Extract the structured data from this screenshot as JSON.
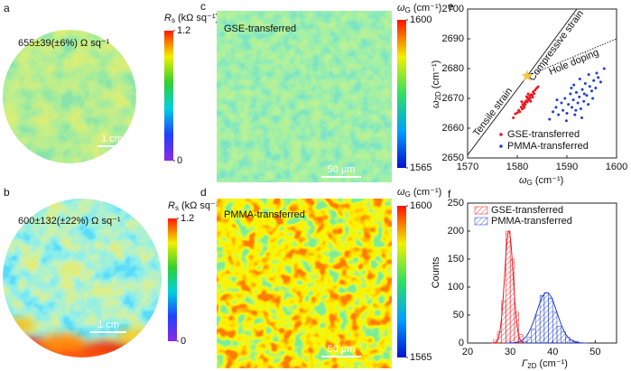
{
  "chart_data": [
    {
      "type": "map",
      "panel": "a",
      "shape": "circle",
      "colormap": "rainbow",
      "colorbar_label": {
        "symbol": "R",
        "subscript": "s",
        "unit": "(kΩ sq⁻¹)"
      },
      "annotation": "655±39(±6%) Ω sq⁻¹",
      "scale_bar": "1 cm",
      "clim": [
        0,
        1.2
      ],
      "cticks": [
        0,
        1.2
      ]
    },
    {
      "type": "map",
      "panel": "b",
      "shape": "circle",
      "colormap": "rainbow",
      "colorbar_label": {
        "symbol": "R",
        "subscript": "s",
        "unit": "(kΩ sq⁻¹)"
      },
      "annotation": "600±132(±22%) Ω sq⁻¹",
      "scale_bar": "1 cm",
      "clim": [
        0,
        1.2
      ],
      "cticks": [
        0,
        1.2
      ]
    },
    {
      "type": "map",
      "panel": "c",
      "shape": "square",
      "colormap": "jet",
      "colorbar_label": {
        "symbol": "ω",
        "subscript": "G",
        "unit": "(cm⁻¹)"
      },
      "annotation": "GSE-transferred",
      "scale_bar": "50 μm",
      "clim": [
        1565,
        1600
      ],
      "cticks": [
        1565,
        1600
      ]
    },
    {
      "type": "map",
      "panel": "d",
      "shape": "square",
      "colormap": "jet",
      "colorbar_label": {
        "symbol": "ω",
        "subscript": "G",
        "unit": "(cm⁻¹)"
      },
      "annotation": "PMMA-transferred",
      "scale_bar": "50 μm",
      "clim": [
        1565,
        1600
      ],
      "cticks": [
        1565,
        1600
      ]
    },
    {
      "type": "scatter",
      "panel": "e",
      "x_label": {
        "symbol": "ω",
        "subscript": "G",
        "unit": "(cm⁻¹)"
      },
      "y_label": {
        "symbol": "ω",
        "subscript": "2D",
        "unit": "(cm⁻¹)"
      },
      "xlim": [
        1570,
        1600
      ],
      "xticks": [
        1570,
        1580,
        1590,
        1600
      ],
      "ylim": [
        2650,
        2700
      ],
      "yticks": [
        2650,
        2660,
        2670,
        2680,
        2690,
        2700
      ],
      "legend": "lower right",
      "series": [
        {
          "name": "GSE-transferred",
          "color": "#e8191f",
          "x": [
            1579.2,
            1579.6,
            1580.0,
            1580.3,
            1580.5,
            1580.8,
            1581.0,
            1581.1,
            1581.3,
            1581.5,
            1581.6,
            1581.8,
            1582.0,
            1582.1,
            1582.3,
            1582.5,
            1582.6,
            1582.8,
            1583.0,
            1583.2,
            1583.4,
            1583.6,
            1583.9,
            1584.2,
            1580.9,
            1581.4,
            1582.2,
            1582.7,
            1583.1,
            1581.9
          ],
          "y": [
            2663.5,
            2664.8,
            2665.2,
            2666.0,
            2665.5,
            2667.1,
            2666.4,
            2668.0,
            2667.5,
            2668.6,
            2667.9,
            2669.2,
            2668.8,
            2670.1,
            2669.4,
            2670.8,
            2670.0,
            2671.3,
            2671.0,
            2672.2,
            2671.6,
            2672.8,
            2673.4,
            2673.9,
            2668.9,
            2666.9,
            2671.5,
            2669.0,
            2670.4,
            2670.6
          ]
        },
        {
          "name": "PMMA-transferred",
          "color": "#1f3fd4",
          "x": [
            1586.5,
            1587.2,
            1587.8,
            1588.3,
            1588.9,
            1589.2,
            1589.6,
            1590.0,
            1590.3,
            1590.7,
            1591.0,
            1591.3,
            1591.6,
            1591.9,
            1592.2,
            1592.5,
            1592.8,
            1593.1,
            1593.4,
            1593.7,
            1594.0,
            1594.3,
            1594.6,
            1595.0,
            1595.4,
            1595.8,
            1596.3,
            1596.8,
            1597.5,
            1588.0,
            1589.9,
            1590.9,
            1591.8,
            1592.6,
            1593.5,
            1594.4,
            1595.2,
            1596.0,
            1591.4,
            1593.0
          ],
          "y": [
            2663.0,
            2665.5,
            2667.0,
            2664.5,
            2668.5,
            2666.0,
            2670.0,
            2665.0,
            2668.0,
            2671.5,
            2667.0,
            2669.5,
            2664.5,
            2672.0,
            2668.5,
            2670.5,
            2666.5,
            2673.0,
            2669.0,
            2675.0,
            2671.0,
            2668.0,
            2674.0,
            2672.5,
            2676.0,
            2673.5,
            2677.0,
            2675.5,
            2680.0,
            2669.5,
            2662.5,
            2673.5,
            2666.0,
            2676.5,
            2671.5,
            2678.0,
            2670.0,
            2678.5,
            2674.5,
            2663.5
          ]
        }
      ],
      "lines": [
        {
          "label": "Tensile strain",
          "style": "solid",
          "x": [
            1570,
            1582
          ],
          "y": [
            2651,
            2677.5
          ]
        },
        {
          "label": "Compressive strain",
          "style": "solid",
          "x": [
            1582,
            1592
          ],
          "y": [
            2677.5,
            2700
          ]
        },
        {
          "label": "Hole doping",
          "style": "dotted",
          "x": [
            1582,
            1600
          ],
          "y": [
            2677.5,
            2690
          ]
        }
      ],
      "star": {
        "x": 1582,
        "y": 2677.5,
        "color": "#f5c343"
      }
    },
    {
      "type": "histogram",
      "panel": "f",
      "y_label": "Counts",
      "x_label": {
        "symbol": "Γ",
        "subscript": "2D",
        "unit": "(cm⁻¹)"
      },
      "xlim": [
        20,
        55
      ],
      "xticks": [
        20,
        30,
        40,
        50
      ],
      "ylim": [
        0,
        250
      ],
      "yticks": [
        0,
        50,
        100,
        150,
        200,
        250
      ],
      "legend": "upper left",
      "series": [
        {
          "name": "GSE-transferred",
          "color": "#e8191f",
          "bins": [
            26,
            27,
            28,
            29,
            30,
            31,
            32,
            33
          ],
          "counts": [
            5,
            20,
            75,
            200,
            150,
            55,
            15
          ],
          "fit": {
            "amplitude": 200,
            "mean": 29.7,
            "sigma": 1.0
          }
        },
        {
          "name": "PMMA-transferred",
          "color": "#1f3fd4",
          "bins": [
            33,
            34,
            35,
            36,
            37,
            38,
            39,
            40,
            41,
            42,
            43,
            44,
            45,
            46
          ],
          "counts": [
            3,
            10,
            25,
            50,
            85,
            90,
            80,
            55,
            30,
            20,
            10,
            5,
            3
          ],
          "fit": {
            "amplitude": 90,
            "mean": 38.6,
            "sigma": 2.4
          }
        }
      ]
    }
  ]
}
